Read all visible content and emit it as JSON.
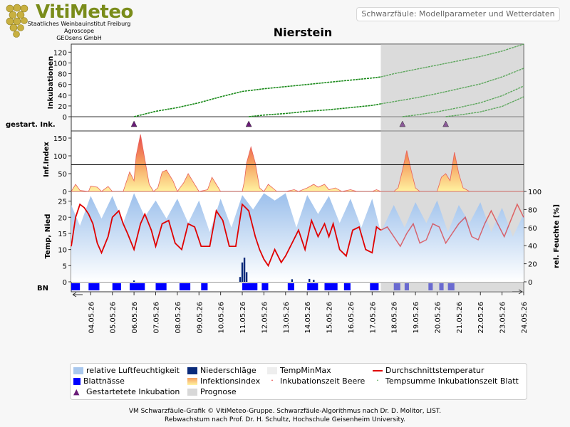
{
  "header": {
    "logo_title": "VitiMeteo",
    "logo_lines": [
      "Staatliches Weinbauinstitut Freiburg",
      "Agroscope",
      "GEOsens GmbH"
    ],
    "subtitle_box": "Schwarzfäule: Modellparameter und Wetterdaten",
    "title": "Nierstein"
  },
  "panels": {
    "inkubationen_label": "Inkubationen",
    "gestart_label": "gestart. Ink.",
    "infindex_label": "Inf.Index",
    "temp_label": "Temp, Nied",
    "feuchte_label": "rel. Feuchte [%]",
    "bn_label": "BN"
  },
  "chart_data": {
    "type": "line",
    "dates": [
      "04.05.26",
      "05.05.26",
      "06.05.26",
      "07.05.26",
      "08.05.26",
      "09.05.26",
      "10.05.26",
      "11.05.26",
      "12.05.26",
      "13.05.26",
      "14.05.26",
      "15.05.26",
      "16.05.26",
      "17.05.26",
      "18.05.26",
      "19.05.26",
      "20.05.26",
      "21.05.26",
      "22.05.26",
      "23.05.26",
      "24.05.26"
    ],
    "x_start": 3.1,
    "x_end": 24.0,
    "prognose_start": 17.4,
    "inkubationen": {
      "ylim": [
        0,
        135
      ],
      "yticks": [
        0,
        20,
        40,
        60,
        80,
        100,
        120
      ],
      "series": [
        {
          "start": 6.0,
          "points": [
            [
              6.0,
              0
            ],
            [
              7.0,
              10
            ],
            [
              8.0,
              17
            ],
            [
              9.0,
              26
            ],
            [
              10.0,
              37
            ],
            [
              11.0,
              47
            ],
            [
              12.0,
              52
            ],
            [
              13.0,
              56
            ],
            [
              14.0,
              60
            ],
            [
              15.0,
              64
            ],
            [
              16.0,
              68
            ],
            [
              17.0,
              72
            ],
            [
              17.4,
              74
            ],
            [
              18.0,
              80
            ],
            [
              19.0,
              88
            ],
            [
              20.0,
              96
            ],
            [
              21.0,
              104
            ],
            [
              22.0,
              112
            ],
            [
              23.0,
              122
            ],
            [
              24.0,
              135
            ]
          ]
        },
        {
          "start": 11.3,
          "points": [
            [
              11.3,
              0
            ],
            [
              12.0,
              3
            ],
            [
              13.0,
              6
            ],
            [
              14.0,
              10
            ],
            [
              15.0,
              13
            ],
            [
              16.0,
              17
            ],
            [
              17.0,
              21
            ],
            [
              17.4,
              24
            ],
            [
              18.0,
              28
            ],
            [
              19.0,
              35
            ],
            [
              20.0,
              43
            ],
            [
              21.0,
              52
            ],
            [
              22.0,
              61
            ],
            [
              23.0,
              74
            ],
            [
              24.0,
              90
            ]
          ]
        },
        {
          "start": 18.4,
          "points": [
            [
              18.4,
              0
            ],
            [
              19.0,
              3
            ],
            [
              20.0,
              9
            ],
            [
              21.0,
              17
            ],
            [
              22.0,
              26
            ],
            [
              23.0,
              39
            ],
            [
              24.0,
              57
            ]
          ]
        },
        {
          "start": 20.4,
          "points": [
            [
              20.4,
              0
            ],
            [
              21.0,
              3
            ],
            [
              22.0,
              9
            ],
            [
              23.0,
              19
            ],
            [
              24.0,
              37
            ]
          ]
        }
      ]
    },
    "gestartete_inkubation": [
      6.0,
      11.3,
      18.4,
      20.4
    ],
    "infektionsindex": {
      "ylim": [
        0,
        170
      ],
      "yticks": [
        0,
        50,
        100,
        150
      ],
      "threshold": 75,
      "points": [
        [
          3.1,
          0
        ],
        [
          3.3,
          20
        ],
        [
          3.5,
          3
        ],
        [
          3.9,
          0
        ],
        [
          4.0,
          15
        ],
        [
          4.3,
          12
        ],
        [
          4.5,
          0
        ],
        [
          4.8,
          14
        ],
        [
          5.0,
          0
        ],
        [
          5.5,
          0
        ],
        [
          5.8,
          55
        ],
        [
          6.0,
          30
        ],
        [
          6.1,
          100
        ],
        [
          6.3,
          160
        ],
        [
          6.5,
          90
        ],
        [
          6.7,
          20
        ],
        [
          6.9,
          0
        ],
        [
          7.1,
          10
        ],
        [
          7.3,
          55
        ],
        [
          7.5,
          60
        ],
        [
          7.8,
          30
        ],
        [
          8.0,
          0
        ],
        [
          8.3,
          25
        ],
        [
          8.5,
          50
        ],
        [
          8.8,
          20
        ],
        [
          9.0,
          0
        ],
        [
          9.4,
          5
        ],
        [
          9.6,
          40
        ],
        [
          9.8,
          20
        ],
        [
          10.0,
          0
        ],
        [
          11.0,
          0
        ],
        [
          11.1,
          30
        ],
        [
          11.2,
          80
        ],
        [
          11.4,
          125
        ],
        [
          11.6,
          80
        ],
        [
          11.8,
          10
        ],
        [
          12.0,
          0
        ],
        [
          12.2,
          20
        ],
        [
          12.4,
          10
        ],
        [
          12.6,
          0
        ],
        [
          13.0,
          0
        ],
        [
          13.4,
          5
        ],
        [
          13.6,
          0
        ],
        [
          14.0,
          10
        ],
        [
          14.3,
          20
        ],
        [
          14.5,
          12
        ],
        [
          14.8,
          20
        ],
        [
          15.0,
          5
        ],
        [
          15.3,
          10
        ],
        [
          15.6,
          0
        ],
        [
          16.0,
          5
        ],
        [
          16.3,
          0
        ],
        [
          17.0,
          0
        ],
        [
          17.2,
          5
        ],
        [
          17.4,
          0
        ],
        [
          18.0,
          0
        ],
        [
          18.2,
          10
        ],
        [
          18.4,
          60
        ],
        [
          18.6,
          115
        ],
        [
          18.8,
          60
        ],
        [
          19.0,
          10
        ],
        [
          19.2,
          0
        ],
        [
          20.0,
          0
        ],
        [
          20.2,
          40
        ],
        [
          20.4,
          50
        ],
        [
          20.6,
          30
        ],
        [
          20.8,
          110
        ],
        [
          21.0,
          50
        ],
        [
          21.2,
          10
        ],
        [
          21.5,
          0
        ],
        [
          24.0,
          0
        ]
      ]
    },
    "temperatur": {
      "ylim": [
        0,
        28
      ],
      "yticks": [
        0,
        5,
        10,
        15,
        20,
        25
      ],
      "points": [
        [
          3.1,
          11
        ],
        [
          3.3,
          20
        ],
        [
          3.5,
          24
        ],
        [
          3.7,
          23
        ],
        [
          3.9,
          21
        ],
        [
          4.1,
          18
        ],
        [
          4.3,
          12
        ],
        [
          4.5,
          9
        ],
        [
          4.8,
          14
        ],
        [
          5.0,
          20
        ],
        [
          5.3,
          22
        ],
        [
          5.5,
          18
        ],
        [
          5.7,
          15
        ],
        [
          6.0,
          10
        ],
        [
          6.3,
          18
        ],
        [
          6.5,
          21
        ],
        [
          6.8,
          16
        ],
        [
          7.0,
          11
        ],
        [
          7.3,
          18
        ],
        [
          7.6,
          19
        ],
        [
          7.9,
          12
        ],
        [
          8.2,
          10
        ],
        [
          8.5,
          18
        ],
        [
          8.8,
          17
        ],
        [
          9.1,
          11
        ],
        [
          9.5,
          11
        ],
        [
          9.8,
          22
        ],
        [
          10.1,
          19
        ],
        [
          10.4,
          11
        ],
        [
          10.7,
          11
        ],
        [
          11.0,
          24
        ],
        [
          11.3,
          22
        ],
        [
          11.6,
          14
        ],
        [
          11.8,
          10
        ],
        [
          12.0,
          7
        ],
        [
          12.2,
          5
        ],
        [
          12.5,
          10
        ],
        [
          12.8,
          6
        ],
        [
          13.0,
          8
        ],
        [
          13.3,
          12
        ],
        [
          13.6,
          16
        ],
        [
          13.9,
          10
        ],
        [
          14.2,
          19
        ],
        [
          14.5,
          14
        ],
        [
          14.8,
          18
        ],
        [
          15.0,
          14
        ],
        [
          15.2,
          18
        ],
        [
          15.5,
          10
        ],
        [
          15.8,
          8
        ],
        [
          16.1,
          16
        ],
        [
          16.4,
          17
        ],
        [
          16.7,
          10
        ],
        [
          17.0,
          9
        ],
        [
          17.2,
          17
        ],
        [
          17.4,
          16
        ],
        [
          17.7,
          17
        ],
        [
          18.0,
          14
        ],
        [
          18.3,
          11
        ],
        [
          18.6,
          15
        ],
        [
          18.9,
          18
        ],
        [
          19.2,
          12
        ],
        [
          19.5,
          13
        ],
        [
          19.8,
          18
        ],
        [
          20.1,
          17
        ],
        [
          20.4,
          12
        ],
        [
          20.7,
          15
        ],
        [
          21.0,
          18
        ],
        [
          21.3,
          20
        ],
        [
          21.6,
          14
        ],
        [
          21.9,
          13
        ],
        [
          22.2,
          18
        ],
        [
          22.5,
          22
        ],
        [
          22.8,
          18
        ],
        [
          23.1,
          14
        ],
        [
          23.4,
          19
        ],
        [
          23.7,
          24
        ],
        [
          24.0,
          20
        ]
      ]
    },
    "luftfeuchte": {
      "ylim": [
        0,
        100
      ],
      "yticks": [
        0,
        20,
        40,
        60,
        80,
        100
      ],
      "points": [
        [
          3.1,
          85
        ],
        [
          3.5,
          62
        ],
        [
          4.0,
          95
        ],
        [
          4.5,
          70
        ],
        [
          5.0,
          95
        ],
        [
          5.5,
          65
        ],
        [
          6.0,
          98
        ],
        [
          6.5,
          72
        ],
        [
          7.0,
          90
        ],
        [
          7.5,
          70
        ],
        [
          8.0,
          92
        ],
        [
          8.5,
          65
        ],
        [
          9.0,
          90
        ],
        [
          9.5,
          55
        ],
        [
          10.0,
          92
        ],
        [
          10.5,
          60
        ],
        [
          11.0,
          96
        ],
        [
          11.5,
          80
        ],
        [
          12.0,
          98
        ],
        [
          12.5,
          90
        ],
        [
          13.0,
          98
        ],
        [
          13.5,
          60
        ],
        [
          14.0,
          96
        ],
        [
          14.5,
          75
        ],
        [
          15.0,
          95
        ],
        [
          15.5,
          65
        ],
        [
          16.0,
          92
        ],
        [
          16.5,
          60
        ],
        [
          17.0,
          92
        ],
        [
          17.4,
          55
        ],
        [
          18.0,
          85
        ],
        [
          18.5,
          60
        ],
        [
          19.0,
          88
        ],
        [
          19.5,
          65
        ],
        [
          20.0,
          90
        ],
        [
          20.5,
          55
        ],
        [
          21.0,
          85
        ],
        [
          21.5,
          65
        ],
        [
          22.0,
          88
        ],
        [
          22.5,
          55
        ],
        [
          23.0,
          82
        ],
        [
          23.5,
          50
        ],
        [
          24.0,
          75
        ]
      ]
    },
    "niederschlag": [
      [
        11.0,
        6
      ],
      [
        11.1,
        7.5
      ],
      [
        11.2,
        3
      ],
      [
        10.9,
        1.5
      ],
      [
        13.3,
        0.8
      ],
      [
        14.1,
        0.9
      ],
      [
        14.3,
        0.6
      ],
      [
        6.0,
        0.4
      ]
    ],
    "blattnaesse": [
      [
        3.1,
        3.5
      ],
      [
        3.9,
        4.4
      ],
      [
        5.0,
        5.4
      ],
      [
        5.8,
        6.5
      ],
      [
        7.0,
        7.5
      ],
      [
        8.1,
        8.6
      ],
      [
        9.1,
        9.4
      ],
      [
        11.0,
        11.7
      ],
      [
        11.9,
        12.2
      ],
      [
        13.1,
        13.4
      ],
      [
        14.0,
        14.5
      ],
      [
        14.8,
        15.4
      ],
      [
        15.7,
        16.0
      ],
      [
        16.9,
        17.3
      ],
      [
        18.0,
        18.3
      ],
      [
        18.5,
        18.7
      ],
      [
        19.6,
        19.8
      ],
      [
        20.1,
        20.3
      ],
      [
        20.5,
        20.8
      ]
    ]
  },
  "legend": [
    {
      "label": "relative Luftfeuchtigkeit",
      "color": "#a9c8ee",
      "kind": "box"
    },
    {
      "label": "Niederschläge",
      "color": "#0a2a7a",
      "kind": "box"
    },
    {
      "label": "TempMinMax",
      "color": "#eeeeee",
      "kind": "box"
    },
    {
      "label": "Durchschnittstemperatur",
      "color": "#e00000",
      "kind": "line"
    },
    {
      "label": "Blattnässe",
      "color": "#0000ff",
      "kind": "box"
    },
    {
      "label": "Infektionsindex",
      "color": "#f2c060",
      "kind": "gradient"
    },
    {
      "label": "Inkubationszeit Beere",
      "color": "#e00000",
      "kind": "dot"
    },
    {
      "label": "Tempsumme Inkubationszeit Blatt",
      "color": "#1f8a1f",
      "kind": "dot"
    },
    {
      "label": "Gestartetete Inkubation",
      "color": "#6a1c78",
      "kind": "triangle"
    },
    {
      "label": "Prognose",
      "color": "#d8d8d8",
      "kind": "box"
    }
  ],
  "footer": {
    "line1": "VM Schwarzfäule-Grafik © VitiMeteo-Gruppe. Schwarzfäule-Algorithmus nach Dr. D. Molitor, LIST.",
    "line2": "Rebwachstum nach Prof. Dr. H. Schultz, Hochschule Geisenheim University."
  }
}
